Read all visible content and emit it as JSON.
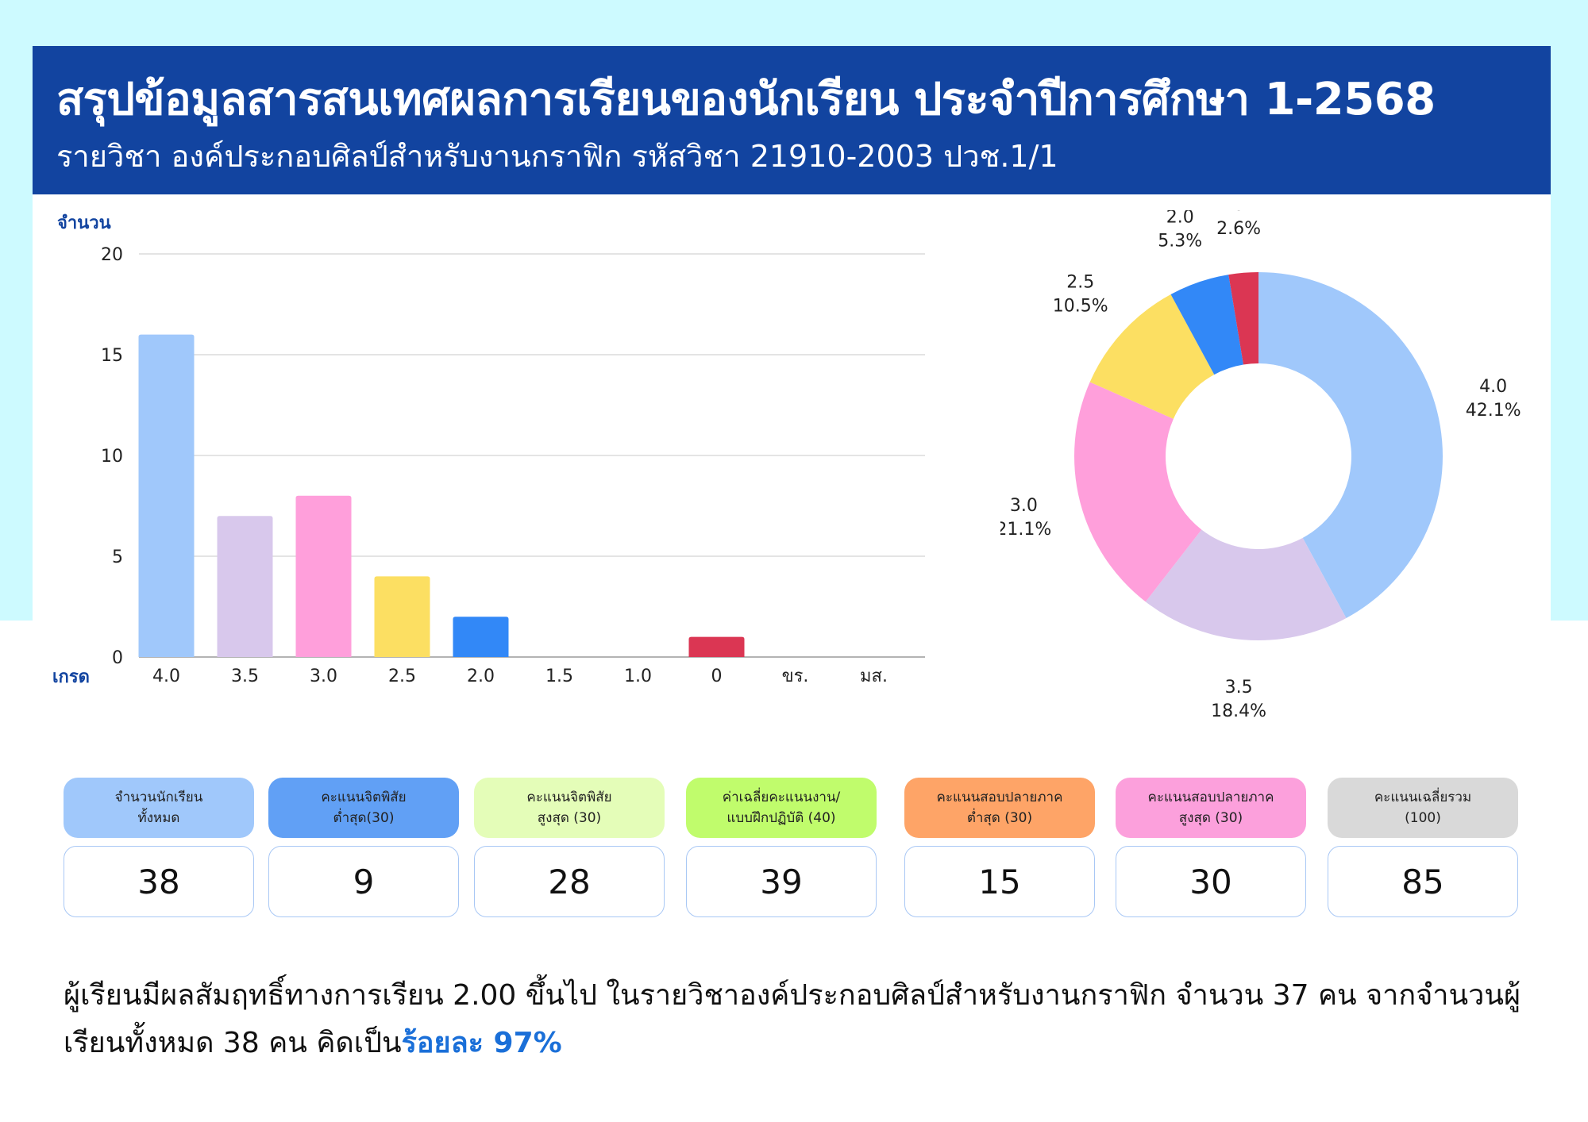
{
  "header": {
    "title": "สรุปข้อมูลสารสนเทศผลการเรียนของนักเรียน ประจำปีการศึกษา 1-2568",
    "subtitle": "รายวิชา องค์ประกอบศิลป์สำหรับงานกราฟิก รหัสวิชา 21910-2003 ปวช.1/1"
  },
  "colors": {
    "header_bg": "#1244a0",
    "page_bg_top": "#cdfaff",
    "accent_text": "#1a6fd8"
  },
  "chart_data": [
    {
      "type": "bar",
      "xlabel": "เกรด",
      "ylabel": "จำนวน",
      "categories": [
        "4.0",
        "3.5",
        "3.0",
        "2.5",
        "2.0",
        "1.5",
        "1.0",
        "0",
        "ขร.",
        "มส."
      ],
      "values": [
        16,
        7,
        8,
        4,
        2,
        0,
        0,
        1,
        0,
        0
      ],
      "colors": [
        "#a0c8fb",
        "#d8c8ec",
        "#ff9fdb",
        "#fcdf62",
        "#3288f7",
        "#cccccc",
        "#cccccc",
        "#db3653",
        "#cccccc",
        "#cccccc"
      ],
      "ylim": [
        0,
        20
      ],
      "yticks": [
        0,
        5,
        10,
        15,
        20
      ],
      "grid": true
    },
    {
      "type": "pie",
      "donut": true,
      "slices": [
        {
          "label": "4.0",
          "value": 42.1,
          "pct_label": "42.1%",
          "color": "#a0c8fb"
        },
        {
          "label": "3.5",
          "value": 18.4,
          "pct_label": "18.4%",
          "color": "#d8c8ec"
        },
        {
          "label": "3.0",
          "value": 21.1,
          "pct_label": "21.1%",
          "color": "#ff9fdb"
        },
        {
          "label": "2.5",
          "value": 10.5,
          "pct_label": "10.5%",
          "color": "#fcdf62"
        },
        {
          "label": "2.0",
          "value": 5.3,
          "pct_label": "5.3%",
          "color": "#3288f7"
        },
        {
          "label": "0",
          "value": 2.6,
          "pct_label": "2.6%",
          "color": "#db3653"
        }
      ]
    }
  ],
  "stats": [
    {
      "label": "จำนวนนักเรียน\nทั้งหมด",
      "value": "38",
      "color": "#a0c8fb"
    },
    {
      "label": "คะแนนจิตพิสัย\nต่ำสุด(30)",
      "value": "9",
      "color": "#61a0f5"
    },
    {
      "label": "คะแนนจิตพิสัย\nสูงสุด (30)",
      "value": "28",
      "color": "#e4fdb8"
    },
    {
      "label": "ค่าเฉลี่ยคะแนนงาน/\nแบบฝึกปฏิบัติ (40)",
      "value": "39",
      "color": "#c0fc6c"
    },
    {
      "label": "คะแนนสอบปลายภาค\nต่ำสุด (30)",
      "value": "15",
      "color": "#fea467"
    },
    {
      "label": "คะแนนสอบปลายภาค\nสูงสุด (30)",
      "value": "30",
      "color": "#fca0dc"
    },
    {
      "label": "คะแนนเฉลี่ยรวม\n(100)",
      "value": "85",
      "color": "#d9d9d9"
    }
  ],
  "summary": {
    "text": "ผู้เรียนมีผลสัมฤทธิ์ทางการเรียน 2.00 ขึ้นไป ในรายวิชาองค์ประกอบศิลป์สำหรับงานกราฟิก จำนวน 37 คน จากจำนวนผู้เรียนทั้งหมด 38 คน คิดเป็น",
    "highlight": "ร้อยละ  97%"
  }
}
